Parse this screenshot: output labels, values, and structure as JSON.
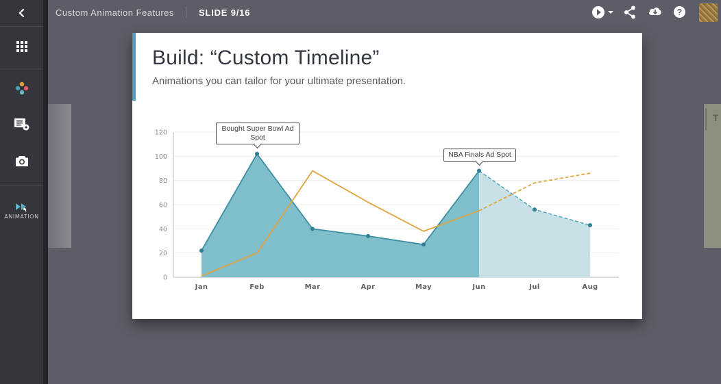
{
  "header": {
    "deck_title": "Custom Animation Features",
    "slide_counter": "SLIDE 9/16"
  },
  "sidebar": {
    "items": [
      {
        "name": "back",
        "icon": "chevron-left-icon"
      },
      {
        "name": "grid",
        "icon": "grid-icon"
      },
      {
        "name": "theme",
        "icon": "palette-dots-icon"
      },
      {
        "name": "settings",
        "icon": "list-settings-icon"
      },
      {
        "name": "snapshot",
        "icon": "camera-icon"
      },
      {
        "name": "animation",
        "icon": "play-forward-icon",
        "label": "ANIMATION"
      }
    ]
  },
  "toolbar": {
    "icons": [
      "play-icon",
      "chevron-down-icon",
      "share-icon",
      "download-icon",
      "help-icon",
      "avatar"
    ]
  },
  "next_slide_peek": "T",
  "slide": {
    "title": "Build: “Custom Timeline”",
    "subtitle": "Animations you can tailor for your ultimate presentation.",
    "accent_color": "#4aa0b5"
  },
  "chart_data": {
    "type": "area",
    "categories": [
      "Jan",
      "Feb",
      "Mar",
      "Apr",
      "May",
      "Jun",
      "Jul",
      "Aug"
    ],
    "ylim": [
      0,
      120
    ],
    "yticks": [
      0,
      20,
      40,
      60,
      80,
      100,
      120
    ],
    "grid": true,
    "series": [
      {
        "type": "area",
        "values": [
          22,
          102,
          40,
          34,
          27,
          88,
          56,
          43
        ],
        "color": "#4aa0b5",
        "solid_until_index": 5
      },
      {
        "type": "line",
        "values": [
          1,
          20,
          88,
          62,
          38,
          55,
          78,
          86
        ],
        "color": "#e0a43c",
        "solid_until_index": 5
      }
    ],
    "annotations": [
      {
        "category": "Feb",
        "text": "Bought Super Bowl Ad Spot"
      },
      {
        "category": "Jun",
        "text": "NBA Finals Ad Spot"
      }
    ]
  }
}
